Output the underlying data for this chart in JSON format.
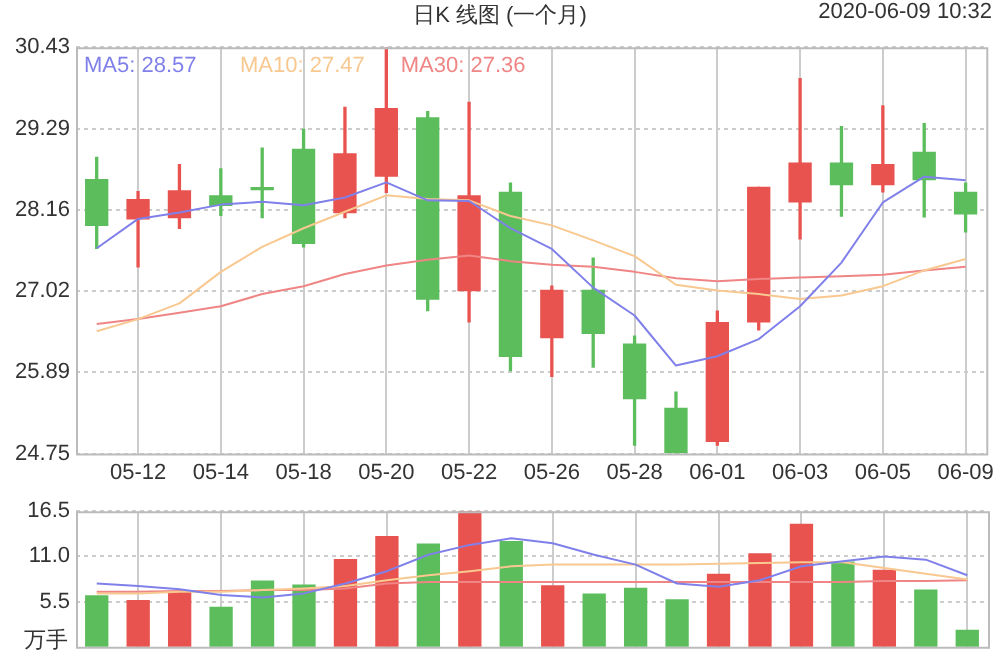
{
  "chart_data": [
    {
      "type": "candlestick",
      "title": "日K 线图 (一个月)",
      "annotations": [
        "2020-06-09 10:32"
      ],
      "categories": [
        null,
        "05-12",
        null,
        "05-14",
        null,
        "05-18",
        null,
        "05-20",
        null,
        "05-22",
        null,
        "05-26",
        null,
        "05-28",
        null,
        "06-01",
        null,
        "06-03",
        null,
        "06-05",
        null,
        "06-09"
      ],
      "ohlc": [
        [
          28.58,
          28.89,
          27.62,
          27.94
        ],
        [
          28.03,
          28.41,
          27.36,
          28.3
        ],
        [
          28.05,
          28.79,
          27.9,
          28.42
        ],
        [
          28.35,
          28.73,
          28.08,
          28.22
        ],
        [
          28.46,
          29.02,
          28.05,
          28.44
        ],
        [
          29.0,
          29.28,
          27.64,
          27.69
        ],
        [
          28.12,
          29.59,
          28.05,
          28.94
        ],
        [
          28.63,
          30.43,
          28.4,
          29.57
        ],
        [
          29.44,
          29.53,
          26.75,
          26.91
        ],
        [
          27.03,
          29.66,
          26.59,
          28.35
        ],
        [
          28.4,
          28.53,
          25.91,
          26.11
        ],
        [
          26.37,
          27.09,
          25.83,
          27.03
        ],
        [
          27.03,
          27.48,
          25.96,
          26.43
        ],
        [
          26.28,
          26.39,
          24.87,
          25.52
        ],
        [
          25.38,
          25.61,
          24.75,
          24.76
        ],
        [
          24.92,
          26.74,
          24.87,
          26.58
        ],
        [
          26.59,
          28.47,
          26.48,
          28.47
        ],
        [
          28.27,
          29.99,
          27.75,
          28.81
        ],
        [
          28.81,
          29.32,
          28.07,
          28.51
        ],
        [
          28.51,
          29.61,
          28.41,
          28.79
        ],
        [
          28.96,
          29.36,
          28.06,
          28.58
        ],
        [
          28.4,
          28.53,
          27.85,
          28.1
        ]
      ],
      "colors": [
        "#5cbd5c",
        "#e9534f",
        "#e9534f",
        "#5cbd5c",
        "#5cbd5c",
        "#5cbd5c",
        "#e9534f",
        "#e9534f",
        "#5cbd5c",
        "#e9534f",
        "#5cbd5c",
        "#e9534f",
        "#5cbd5c",
        "#5cbd5c",
        "#5cbd5c",
        "#e9534f",
        "#e9534f",
        "#e9534f",
        "#5cbd5c",
        "#e9534f",
        "#5cbd5c",
        "#5cbd5c"
      ],
      "series": [
        {
          "name": "MA5: 28.57",
          "type": "line",
          "color": "#8080ea",
          "values": [
            27.62,
            28.03,
            28.12,
            28.23,
            28.27,
            28.22,
            28.33,
            28.54,
            28.29,
            28.28,
            27.9,
            27.61,
            27.07,
            26.68,
            25.98,
            26.11,
            26.35,
            26.81,
            27.42,
            28.26,
            28.62,
            28.57
          ]
        },
        {
          "name": "MA10: 27.47",
          "type": "line",
          "color": "#f8c890",
          "values": [
            26.46,
            26.63,
            26.85,
            27.29,
            27.64,
            27.9,
            28.13,
            28.36,
            28.31,
            28.29,
            28.07,
            27.94,
            27.73,
            27.51,
            27.11,
            27.03,
            26.98,
            26.91,
            26.96,
            27.09,
            27.31,
            27.47
          ]
        },
        {
          "name": "MA30: 27.36",
          "type": "line",
          "color": "#ef8585",
          "values": [
            26.56,
            26.63,
            26.72,
            26.81,
            26.98,
            27.09,
            27.26,
            27.38,
            27.46,
            27.52,
            27.44,
            27.39,
            27.36,
            27.29,
            27.2,
            27.16,
            27.19,
            27.21,
            27.23,
            27.25,
            27.31,
            27.36
          ]
        }
      ],
      "ylim": [
        24.75,
        30.43
      ],
      "yticks": [
        24.75,
        25.89,
        27.02,
        28.16,
        29.29,
        30.43
      ],
      "grid": true,
      "legend": "top left",
      "marker": "none"
    },
    {
      "type": "bar",
      "ylabel": "万手",
      "tick_labels": "y",
      "categories": [
        null,
        null,
        null,
        null,
        null,
        null,
        null,
        null,
        null,
        null,
        null,
        null,
        null,
        null,
        null,
        null,
        null,
        null,
        null,
        null,
        null,
        null
      ],
      "series": [
        {
          "type": "bar",
          "values": [
            6.2,
            5.6,
            6.7,
            4.8,
            8.0,
            7.5,
            10.6,
            13.4,
            12.5,
            16.5,
            12.8,
            7.4,
            6.4,
            7.1,
            5.7,
            8.8,
            11.3,
            14.9,
            10.3,
            9.3,
            6.9,
            2.0
          ],
          "colors": [
            "#5cbd5c",
            "#e9534f",
            "#e9534f",
            "#5cbd5c",
            "#5cbd5c",
            "#5cbd5c",
            "#e9534f",
            "#e9534f",
            "#5cbd5c",
            "#e9534f",
            "#5cbd5c",
            "#e9534f",
            "#5cbd5c",
            "#5cbd5c",
            "#5cbd5c",
            "#e9534f",
            "#e9534f",
            "#e9534f",
            "#5cbd5c",
            "#e9534f",
            "#5cbd5c",
            "#5cbd5c"
          ]
        },
        {
          "type": "line",
          "color": "#8080ea",
          "values": [
            7.7,
            7.4,
            7.0,
            6.3,
            6.0,
            6.5,
            7.7,
            9.2,
            11.2,
            12.4,
            13.2,
            12.6,
            11.2,
            10.0,
            7.7,
            7.3,
            8.1,
            9.8,
            10.4,
            11.0,
            10.6,
            8.7
          ]
        },
        {
          "type": "line",
          "color": "#f8c890",
          "values": [
            6.5,
            6.5,
            6.7,
            6.7,
            6.9,
            7.1,
            7.4,
            8.1,
            8.7,
            9.2,
            9.8,
            10.0,
            10.0,
            10.0,
            10.0,
            10.1,
            10.2,
            10.3,
            10.3,
            9.6,
            8.9,
            8.2
          ]
        },
        {
          "type": "line",
          "color": "#ef8585",
          "values": [
            6.7,
            6.7,
            6.8,
            6.8,
            6.9,
            6.9,
            7.1,
            7.7,
            7.9,
            7.9,
            7.9,
            7.9,
            7.9,
            7.9,
            7.9,
            7.9,
            7.9,
            7.9,
            7.9,
            8.0,
            8.0,
            8.1
          ]
        }
      ],
      "ylim": [
        0,
        16.5
      ],
      "yticks": [
        5.5,
        {
          "value": 11,
          "label": "11.0"
        },
        16.5
      ],
      "grid": true,
      "marker": "none"
    }
  ]
}
